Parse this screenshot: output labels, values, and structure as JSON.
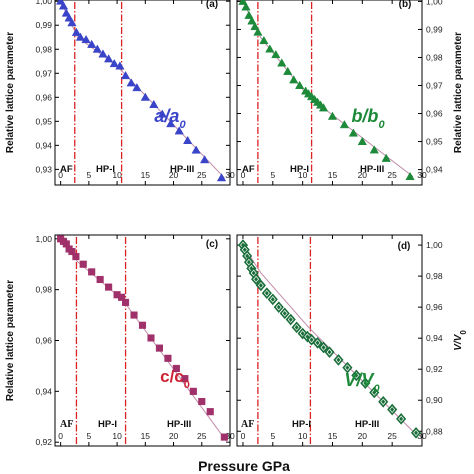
{
  "figure": {
    "xlabel": "Pressure, GPa",
    "xlabel_visible": "Pressure  GPa",
    "colors": {
      "fit_line": "#c08aa8",
      "divider": "#dd2222",
      "text": "#111111"
    }
  },
  "chart_data": [
    {
      "id": "a",
      "type": "scatter",
      "panel_label": "(a)",
      "ylabel": "Relative lattice parameter",
      "ylabel_side": "left",
      "ratio_label": {
        "main": "a/a",
        "sub": "0"
      },
      "ratio_color": "#3a44c8",
      "marker": "triangle",
      "marker_color": "#3a44c8",
      "regions": [
        "AF",
        "HP-I",
        "HP-III"
      ],
      "dividers": [
        2.5,
        10.8
      ],
      "xlim": [
        -1,
        30
      ],
      "ylim": [
        0.9235,
        1.0005
      ],
      "x_ticks": [
        0,
        5,
        10,
        15,
        20,
        25,
        30
      ],
      "x_tick_labels": [
        "0",
        "5",
        "10",
        "15",
        "20",
        "25",
        "30"
      ],
      "y_ticks": [
        0.93,
        0.94,
        0.95,
        0.96,
        0.97,
        0.98,
        0.99,
        1.0
      ],
      "y_tick_labels": [
        "0,93",
        "0,94",
        "0,95",
        "0,96",
        "0,97",
        "0,98",
        "0,99",
        "1,00"
      ],
      "fit": [
        [
          0,
          1.0
        ],
        [
          3,
          0.985
        ],
        [
          10,
          0.973
        ],
        [
          29,
          0.9265
        ]
      ],
      "points": [
        [
          0,
          1.0
        ],
        [
          0.5,
          0.998
        ],
        [
          1,
          0.995
        ],
        [
          1.5,
          0.993
        ],
        [
          2,
          0.991
        ],
        [
          2.8,
          0.987
        ],
        [
          3.5,
          0.985
        ],
        [
          4.5,
          0.984
        ],
        [
          5.5,
          0.982
        ],
        [
          6.5,
          0.98
        ],
        [
          7.5,
          0.978
        ],
        [
          8.5,
          0.976
        ],
        [
          9.5,
          0.974
        ],
        [
          10.5,
          0.973
        ],
        [
          11.5,
          0.969
        ],
        [
          12.5,
          0.966
        ],
        [
          13.5,
          0.964
        ],
        [
          15,
          0.96
        ],
        [
          16.5,
          0.957
        ],
        [
          18,
          0.953
        ],
        [
          19.5,
          0.949
        ],
        [
          21,
          0.946
        ],
        [
          22.5,
          0.942
        ],
        [
          24,
          0.938
        ],
        [
          25.5,
          0.934
        ],
        [
          28.5,
          0.9265
        ]
      ]
    },
    {
      "id": "b",
      "type": "scatter",
      "panel_label": "(b)",
      "ylabel": "Relative lattice parameter",
      "ylabel_side": "right",
      "ratio_label": {
        "main": "b/b",
        "sub": "0"
      },
      "ratio_color": "#1d8a3a",
      "marker": "triangle",
      "marker_color": "#1d8a3a",
      "regions": [
        "AF",
        "HP-I",
        "HP-III"
      ],
      "dividers": [
        2.5,
        11.5
      ],
      "xlim": [
        -1,
        30
      ],
      "ylim": [
        0.9345,
        1.0005
      ],
      "x_ticks": [
        0,
        5,
        10,
        15,
        20,
        25,
        30
      ],
      "x_tick_labels": [
        "0",
        "5",
        "10",
        "15",
        "20",
        "25",
        "30"
      ],
      "y_ticks": [
        0.94,
        0.95,
        0.96,
        0.97,
        0.98,
        0.99,
        1.0
      ],
      "y_tick_labels": [
        "0,94",
        "0,95",
        "0,96",
        "0,97",
        "0,98",
        "0,99",
        "1,00"
      ],
      "fit": [
        [
          0,
          1.0
        ],
        [
          3,
          0.987
        ],
        [
          11,
          0.966
        ],
        [
          28.5,
          0.9375
        ]
      ],
      "points": [
        [
          0,
          1.0
        ],
        [
          0.5,
          0.998
        ],
        [
          1,
          0.995
        ],
        [
          1.5,
          0.993
        ],
        [
          2,
          0.991
        ],
        [
          2.5,
          0.989
        ],
        [
          3.5,
          0.986
        ],
        [
          4.5,
          0.983
        ],
        [
          5.5,
          0.981
        ],
        [
          6.5,
          0.978
        ],
        [
          7.5,
          0.975
        ],
        [
          8.5,
          0.972
        ],
        [
          9.5,
          0.97
        ],
        [
          10.5,
          0.968
        ],
        [
          11,
          0.967
        ],
        [
          11.5,
          0.966
        ],
        [
          12,
          0.965
        ],
        [
          12.5,
          0.964
        ],
        [
          13,
          0.963
        ],
        [
          13.5,
          0.962
        ],
        [
          15,
          0.959
        ],
        [
          17,
          0.956
        ],
        [
          18.5,
          0.953
        ],
        [
          20,
          0.95
        ],
        [
          22,
          0.947
        ],
        [
          24,
          0.944
        ],
        [
          28,
          0.9375
        ]
      ]
    },
    {
      "id": "c",
      "type": "scatter",
      "panel_label": "(c)",
      "ylabel": "Relative lattice parameter",
      "ylabel_side": "left",
      "ratio_label": {
        "main": "c/c",
        "sub": "0"
      },
      "ratio_color": "#cc2233",
      "marker": "square",
      "marker_color": "#a0306a",
      "regions": [
        "AF",
        "HP-I",
        "HP-III"
      ],
      "dividers": [
        2.8,
        11.5
      ],
      "xlim": [
        -1,
        30
      ],
      "ylim": [
        0.9185,
        1.0015
      ],
      "x_ticks": [
        0,
        5,
        10,
        15,
        20,
        25,
        30
      ],
      "x_tick_labels": [
        "0",
        "5",
        "10",
        "15",
        "20",
        "25",
        "30"
      ],
      "y_ticks": [
        0.92,
        0.94,
        0.96,
        0.98,
        1.0
      ],
      "y_tick_labels": [
        "0,92",
        "0,94",
        "0,96",
        "0,98",
        "1,00"
      ],
      "fit": [
        [
          0,
          1.0
        ],
        [
          3,
          0.991
        ],
        [
          11,
          0.976
        ],
        [
          29.5,
          0.92
        ]
      ],
      "points": [
        [
          0,
          1.0
        ],
        [
          0.5,
          0.999
        ],
        [
          1,
          0.998
        ],
        [
          1.5,
          0.996
        ],
        [
          2,
          0.995
        ],
        [
          2.7,
          0.993
        ],
        [
          4,
          0.99
        ],
        [
          5.5,
          0.987
        ],
        [
          7,
          0.984
        ],
        [
          8.5,
          0.981
        ],
        [
          10,
          0.978
        ],
        [
          10.8,
          0.977
        ],
        [
          11.5,
          0.975
        ],
        [
          13,
          0.97
        ],
        [
          14.5,
          0.966
        ],
        [
          16,
          0.961
        ],
        [
          17.5,
          0.957
        ],
        [
          19,
          0.953
        ],
        [
          20.5,
          0.949
        ],
        [
          22,
          0.945
        ],
        [
          23.5,
          0.94
        ],
        [
          25,
          0.936
        ],
        [
          26.5,
          0.932
        ],
        [
          29,
          0.922
        ]
      ]
    },
    {
      "id": "d",
      "type": "scatter",
      "panel_label": "(d)",
      "ylabel": "V/V",
      "ylabel_sub": "0",
      "ylabel_side": "right",
      "ratio_label": {
        "main": "V/V",
        "sub": "0"
      },
      "ratio_color": "#1d8a3a",
      "marker": "diamond",
      "marker_color": "#1a6e3a",
      "regions": [
        "AF",
        "HP-I",
        "HP-III"
      ],
      "dividers": [
        2.5,
        11.3
      ],
      "xlim": [
        -1,
        30
      ],
      "ylim": [
        0.8705,
        1.0065
      ],
      "x_ticks": [
        0,
        5,
        10,
        15,
        20,
        25,
        30
      ],
      "x_tick_labels": [
        "0",
        "5",
        "10",
        "15",
        "20",
        "25",
        "30"
      ],
      "y_ticks": [
        0.88,
        0.9,
        0.92,
        0.94,
        0.96,
        0.98,
        1.0
      ],
      "y_tick_labels": [
        "0,88",
        "0,90",
        "0,92",
        "0,94",
        "0,96",
        "0,98",
        "1,00"
      ],
      "fit": [
        [
          0,
          1.0
        ],
        [
          3,
          0.982
        ],
        [
          11,
          0.947
        ],
        [
          29,
          0.878
        ]
      ],
      "points": [
        [
          0,
          1.0
        ],
        [
          0.3,
          0.997
        ],
        [
          0.7,
          0.993
        ],
        [
          1,
          0.989
        ],
        [
          1.4,
          0.985
        ],
        [
          1.8,
          0.982
        ],
        [
          2.2,
          0.978
        ],
        [
          3,
          0.974
        ],
        [
          4,
          0.969
        ],
        [
          5,
          0.965
        ],
        [
          6,
          0.96
        ],
        [
          7,
          0.956
        ],
        [
          8,
          0.952
        ],
        [
          9,
          0.947
        ],
        [
          10,
          0.943
        ],
        [
          10.8,
          0.941
        ],
        [
          11.5,
          0.939
        ],
        [
          12.5,
          0.937
        ],
        [
          13.5,
          0.934
        ],
        [
          14.5,
          0.931
        ],
        [
          16,
          0.926
        ],
        [
          17.5,
          0.921
        ],
        [
          19,
          0.916
        ],
        [
          20.5,
          0.911
        ],
        [
          22,
          0.905
        ],
        [
          23.5,
          0.899
        ],
        [
          25,
          0.894
        ],
        [
          26.5,
          0.888
        ],
        [
          29,
          0.879
        ]
      ]
    }
  ]
}
